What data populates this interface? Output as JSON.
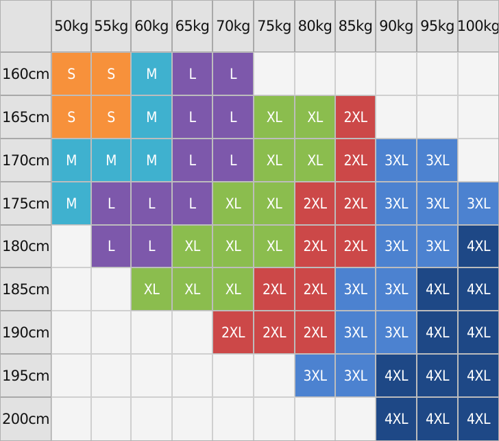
{
  "colors": {
    "S": "#f7913b",
    "M": "#3fb1cf",
    "L": "#7d58ab",
    "XL": "#8bbd4e",
    "2XL": "#cc4848",
    "3XL": "#4c82d0",
    "4XL": "#1e4886",
    "header_bg": "#e2e2e2",
    "empty_bg": "#f4f4f4"
  },
  "size_chart": {
    "weights": [
      "50kg",
      "55kg",
      "60kg",
      "65kg",
      "70kg",
      "75kg",
      "80kg",
      "85kg",
      "90kg",
      "95kg",
      "100kg"
    ],
    "heights": [
      "160cm",
      "165cm",
      "170cm",
      "175cm",
      "180cm",
      "185cm",
      "190cm",
      "195cm",
      "200cm"
    ],
    "sizes": [
      [
        "S",
        "S",
        "M",
        "L",
        "L",
        "",
        "",
        "",
        "",
        "",
        ""
      ],
      [
        "S",
        "S",
        "M",
        "L",
        "L",
        "XL",
        "XL",
        "2XL",
        "",
        "",
        ""
      ],
      [
        "M",
        "M",
        "M",
        "L",
        "L",
        "XL",
        "XL",
        "2XL",
        "3XL",
        "3XL",
        ""
      ],
      [
        "M",
        "L",
        "L",
        "L",
        "XL",
        "XL",
        "2XL",
        "2XL",
        "3XL",
        "3XL",
        "3XL"
      ],
      [
        "",
        "L",
        "L",
        "XL",
        "XL",
        "XL",
        "2XL",
        "2XL",
        "3XL",
        "3XL",
        "4XL"
      ],
      [
        "",
        "",
        "XL",
        "XL",
        "XL",
        "2XL",
        "2XL",
        "3XL",
        "3XL",
        "4XL",
        "4XL"
      ],
      [
        "",
        "",
        "",
        "",
        "2XL",
        "2XL",
        "2XL",
        "3XL",
        "3XL",
        "4XL",
        "4XL"
      ],
      [
        "",
        "",
        "",
        "",
        "",
        "",
        "3XL",
        "3XL",
        "4XL",
        "4XL",
        "4XL"
      ],
      [
        "",
        "",
        "",
        "",
        "",
        "",
        "",
        "",
        "4XL",
        "4XL",
        "4XL"
      ]
    ]
  }
}
